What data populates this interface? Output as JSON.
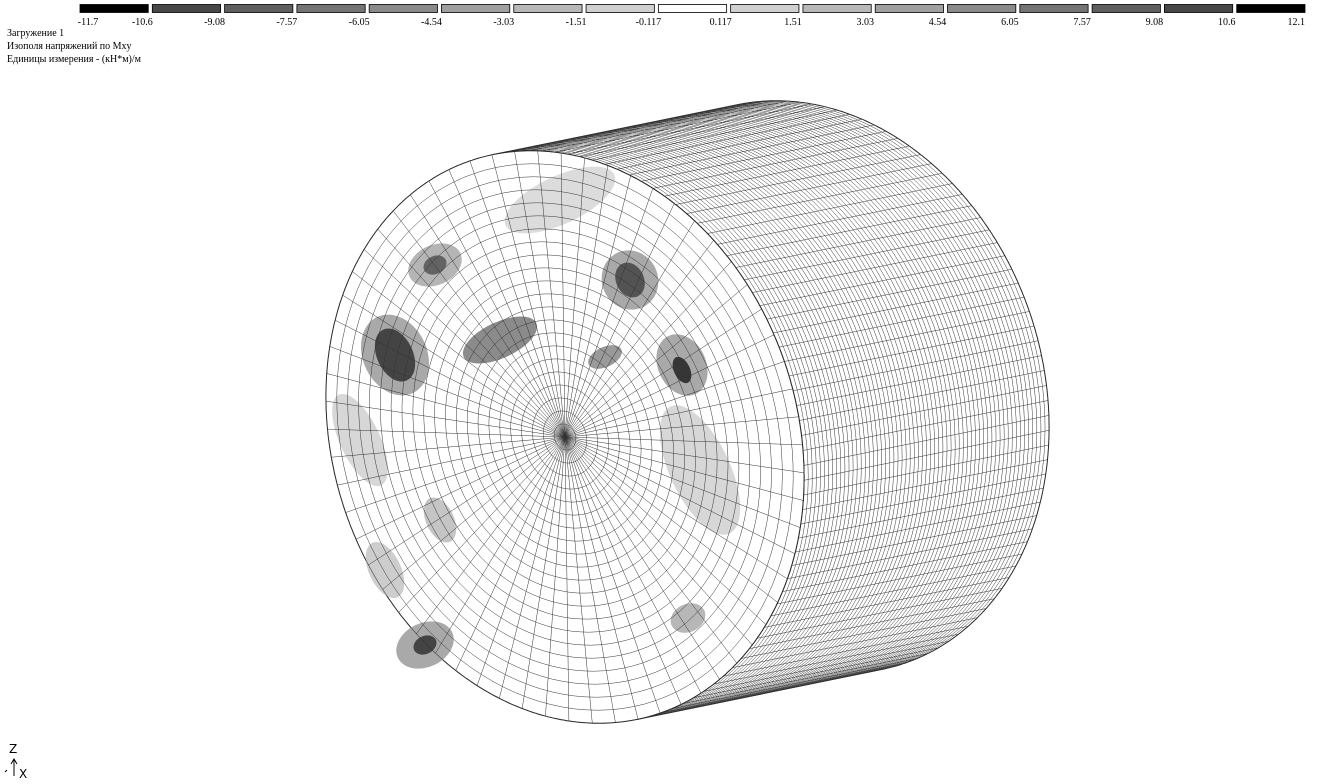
{
  "header": {
    "load": "Загружение 1",
    "title": "Изополя напряжений по Mxy",
    "units": "Единицы измерения - (кН*м)/м"
  },
  "legend": {
    "labels": [
      -11.7,
      -10.6,
      -9.08,
      -7.57,
      -6.05,
      -4.54,
      -3.03,
      -1.51,
      -0.117,
      0.117,
      1.51,
      3.03,
      4.54,
      6.05,
      7.57,
      9.08,
      10.6,
      12.1
    ],
    "colors": [
      "#000000",
      "#474747",
      "#5e5e5e",
      "#747474",
      "#8a8a8a",
      "#a0a0a0",
      "#b8b8b8",
      "#d0d0d0",
      "#ffffff",
      "#d0d0d0",
      "#b8b8b8",
      "#a0a0a0",
      "#8a8a8a",
      "#747474",
      "#5e5e5e",
      "#474747",
      "#000000"
    ]
  },
  "axes": {
    "z": "Z",
    "x": "X"
  }
}
